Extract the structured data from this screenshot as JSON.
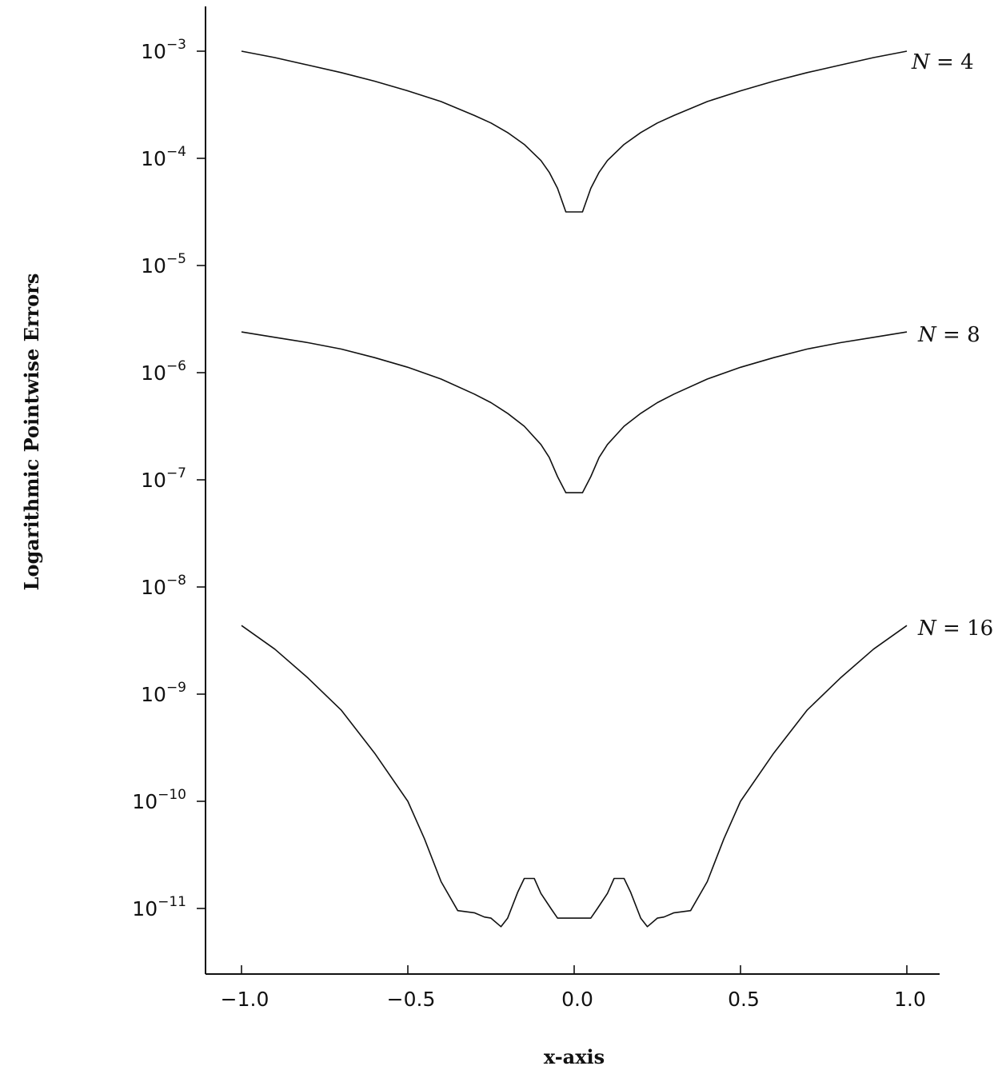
{
  "chart_data": {
    "type": "line",
    "title": "",
    "xlabel": "x-axis",
    "ylabel": "Logarithmic Pointwise Errors",
    "xlim": [
      -1.1,
      1.1
    ],
    "ylim_log10": [
      -11.55,
      -2.4
    ],
    "yscale": "log",
    "grid": false,
    "x_ticks": [
      {
        "value": -1.0,
        "label": "−1.0"
      },
      {
        "value": -0.5,
        "label": "−0.5"
      },
      {
        "value": 0.0,
        "label": "0.0"
      },
      {
        "value": 0.5,
        "label": "0.5"
      },
      {
        "value": 1.0,
        "label": "1.0"
      }
    ],
    "y_ticks": [
      {
        "exponent": -3,
        "base": "10",
        "sup": "−3"
      },
      {
        "exponent": -4,
        "base": "10",
        "sup": "−4"
      },
      {
        "exponent": -5,
        "base": "10",
        "sup": "−5"
      },
      {
        "exponent": -6,
        "base": "10",
        "sup": "−6"
      },
      {
        "exponent": -7,
        "base": "10",
        "sup": "−7"
      },
      {
        "exponent": -8,
        "base": "10",
        "sup": "−8"
      },
      {
        "exponent": -9,
        "base": "10",
        "sup": "−9"
      },
      {
        "exponent": -10,
        "base": "10",
        "sup": "−10"
      },
      {
        "exponent": -11,
        "base": "10",
        "sup": "−11"
      }
    ],
    "series": [
      {
        "label_var": "N",
        "label_rest": " = 4",
        "x": [
          -1.0,
          -0.9,
          -0.8,
          -0.7,
          -0.6,
          -0.5,
          -0.4,
          -0.3,
          -0.25,
          -0.2,
          -0.15,
          -0.1,
          -0.075,
          -0.05,
          -0.025,
          0.025,
          0.05,
          0.075,
          0.1,
          0.15,
          0.2,
          0.25,
          0.3,
          0.4,
          0.5,
          0.6,
          0.7,
          0.8,
          0.9,
          1.0
        ],
        "log10_y": [
          -3.0,
          -3.06,
          -3.13,
          -3.2,
          -3.28,
          -3.37,
          -3.47,
          -3.6,
          -3.67,
          -3.76,
          -3.87,
          -4.02,
          -4.13,
          -4.28,
          -4.5,
          -4.5,
          -4.28,
          -4.13,
          -4.02,
          -3.87,
          -3.76,
          -3.67,
          -3.6,
          -3.47,
          -3.37,
          -3.28,
          -3.2,
          -3.13,
          -3.06,
          -3.0
        ]
      },
      {
        "label_var": "N",
        "label_rest": " = 8",
        "x": [
          -1.0,
          -0.9,
          -0.8,
          -0.7,
          -0.6,
          -0.5,
          -0.4,
          -0.3,
          -0.25,
          -0.2,
          -0.15,
          -0.1,
          -0.075,
          -0.05,
          -0.025,
          0.025,
          0.05,
          0.075,
          0.1,
          0.15,
          0.2,
          0.25,
          0.3,
          0.4,
          0.5,
          0.6,
          0.7,
          0.8,
          0.9,
          1.0
        ],
        "log10_y": [
          -5.62,
          -5.67,
          -5.72,
          -5.78,
          -5.86,
          -5.95,
          -6.06,
          -6.2,
          -6.28,
          -6.38,
          -6.5,
          -6.67,
          -6.79,
          -6.97,
          -7.12,
          -7.12,
          -6.97,
          -6.79,
          -6.67,
          -6.5,
          -6.38,
          -6.28,
          -6.2,
          -6.06,
          -5.95,
          -5.86,
          -5.78,
          -5.72,
          -5.67,
          -5.62
        ]
      },
      {
        "label_var": "N",
        "label_rest": " = 16",
        "x": [
          -1.0,
          -0.9,
          -0.8,
          -0.7,
          -0.6,
          -0.5,
          -0.45,
          -0.4,
          -0.35,
          -0.3,
          -0.27,
          -0.25,
          -0.22,
          -0.2,
          -0.17,
          -0.15,
          -0.12,
          -0.1,
          -0.07,
          -0.05,
          -0.03,
          0.03,
          0.05,
          0.07,
          0.1,
          0.12,
          0.15,
          0.17,
          0.2,
          0.22,
          0.25,
          0.27,
          0.3,
          0.35,
          0.4,
          0.45,
          0.5,
          0.6,
          0.7,
          0.8,
          0.9,
          1.0
        ],
        "log10_y": [
          -8.36,
          -8.58,
          -8.85,
          -9.15,
          -9.55,
          -10.0,
          -10.35,
          -10.75,
          -11.02,
          -11.04,
          -11.08,
          -11.09,
          -11.17,
          -11.09,
          -10.85,
          -10.72,
          -10.72,
          -10.86,
          -11.0,
          -11.09,
          -11.09,
          -11.09,
          -11.09,
          -11.0,
          -10.86,
          -10.72,
          -10.72,
          -10.85,
          -11.09,
          -11.17,
          -11.09,
          -11.08,
          -11.04,
          -11.02,
          -10.75,
          -10.35,
          -10.0,
          -9.55,
          -9.15,
          -8.85,
          -8.58,
          -8.36
        ]
      }
    ]
  }
}
